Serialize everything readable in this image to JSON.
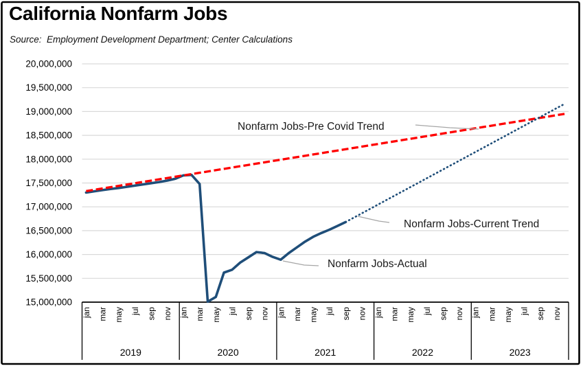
{
  "header": {
    "title": "California Nonfarm Jobs",
    "source": "Source:  Employment Development Department; Center Calculations"
  },
  "chart_data": {
    "type": "line",
    "title": "California Nonfarm Jobs",
    "y_axis": {
      "min": 15000000,
      "max": 20000000,
      "step": 500000,
      "tick_labels_top_to_bottom": [
        "20,000,000",
        "19,500,000",
        "19,000,000",
        "18,500,000",
        "18,000,000",
        "17,500,000",
        "17,000,000",
        "16,500,000",
        "16,000,000",
        "15,500,000",
        "15,000,000"
      ]
    },
    "x_axis": {
      "years": [
        "2019",
        "2020",
        "2021",
        "2022",
        "2023"
      ],
      "months_per_year": 12,
      "month_tick_labels": [
        "jan",
        "mar",
        "may",
        "jul",
        "sep",
        "nov"
      ],
      "grid": "horizontal-only"
    },
    "series": [
      {
        "name": "Nonfarm Jobs-Actual",
        "style": "solid",
        "color": "#1F4E79",
        "start_month": "2019-01",
        "end_month": "2021-09",
        "values": [
          17300000,
          17325000,
          17350000,
          17375000,
          17395000,
          17420000,
          17445000,
          17470000,
          17495000,
          17520000,
          17550000,
          17590000,
          17660000,
          17670000,
          17480000,
          15010000,
          15110000,
          15620000,
          15680000,
          15830000,
          15940000,
          16050000,
          16030000,
          15950000,
          15890000,
          16030000,
          16150000,
          16270000,
          16370000,
          16450000,
          16520000,
          16600000,
          16680000
        ]
      },
      {
        "name": "Nonfarm Jobs-Pre Covid Trend",
        "style": "dashed",
        "color": "#FF0000",
        "from": {
          "month": "2019-01",
          "value": 17330000
        },
        "to": {
          "month": "2023-12",
          "value": 18950000
        }
      },
      {
        "name": "Nonfarm Jobs-Current Trend",
        "style": "dotted",
        "color": "#1F4E79",
        "from": {
          "month": "2021-09",
          "value": 16680000
        },
        "to": {
          "month": "2023-12",
          "value": 19160000
        }
      }
    ],
    "annotations": [
      "Nonfarm Jobs-Pre Covid Trend",
      "Nonfarm Jobs-Current Trend",
      "Nonfarm Jobs-Actual"
    ],
    "colors": {
      "actual_line": "#1F4E79",
      "pre_covid_trend_line": "#FF0000",
      "current_trend_line": "#1F4E79",
      "gridline": "#D9D9D9",
      "axis": "#000000",
      "leader_line": "#A6A6A6",
      "border": "#000000",
      "background": "#FFFFFF"
    },
    "legend": "none (labels drawn as in-plot annotations with gray leader lines)"
  }
}
